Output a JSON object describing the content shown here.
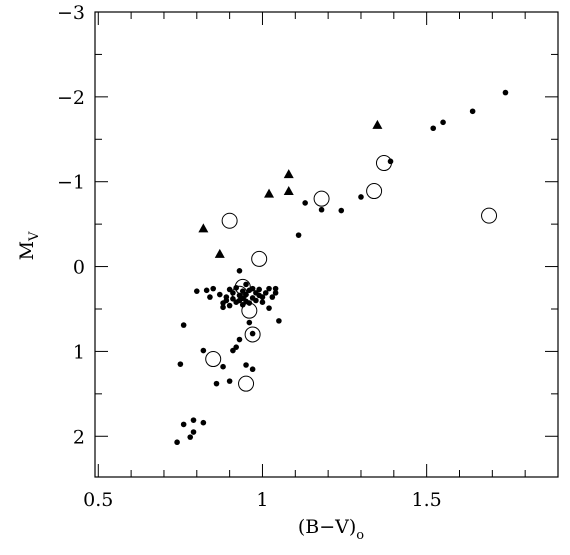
{
  "chart_data": {
    "type": "scatter",
    "xlabel": {
      "main": "(B−V)",
      "sub": "o"
    },
    "ylabel": {
      "main": "M",
      "sub": "V"
    },
    "xlim": [
      0.49,
      1.9
    ],
    "ylim": [
      2.48,
      -3.0
    ],
    "y_inverted": true,
    "grid": false,
    "x_ticks": [
      {
        "value": 0.5,
        "label": "0.5"
      },
      {
        "value": 1.0,
        "label": "1"
      },
      {
        "value": 1.5,
        "label": "1.5"
      }
    ],
    "y_ticks": [
      {
        "value": -3,
        "label": "−3"
      },
      {
        "value": -2,
        "label": "−2"
      },
      {
        "value": -1,
        "label": "−1"
      },
      {
        "value": 0,
        "label": "0"
      },
      {
        "value": 1,
        "label": "1"
      },
      {
        "value": 2,
        "label": "2"
      }
    ],
    "series": [
      {
        "marker": "filled-circle",
        "color": "#000000",
        "points": [
          [
            0.74,
            2.07
          ],
          [
            0.76,
            1.86
          ],
          [
            0.78,
            2.01
          ],
          [
            0.79,
            1.81
          ],
          [
            0.79,
            1.95
          ],
          [
            0.82,
            1.84
          ],
          [
            0.75,
            1.15
          ],
          [
            0.76,
            0.69
          ],
          [
            0.8,
            0.29
          ],
          [
            0.82,
            0.99
          ],
          [
            0.83,
            0.28
          ],
          [
            0.84,
            0.36
          ],
          [
            0.85,
            0.26
          ],
          [
            0.86,
            1.38
          ],
          [
            0.87,
            0.33
          ],
          [
            0.88,
            1.18
          ],
          [
            0.88,
            0.43
          ],
          [
            0.88,
            0.48
          ],
          [
            0.89,
            0.36
          ],
          [
            0.89,
            0.4
          ],
          [
            0.9,
            0.46
          ],
          [
            0.9,
            0.27
          ],
          [
            0.9,
            1.35
          ],
          [
            0.91,
            0.38
          ],
          [
            0.91,
            0.31
          ],
          [
            0.91,
            0.99
          ],
          [
            0.92,
            0.42
          ],
          [
            0.92,
            0.25
          ],
          [
            0.92,
            0.95
          ],
          [
            0.93,
            0.34
          ],
          [
            0.93,
            0.4
          ],
          [
            0.93,
            0.05
          ],
          [
            0.93,
            0.86
          ],
          [
            0.94,
            0.29
          ],
          [
            0.94,
            0.45
          ],
          [
            0.94,
            0.37
          ],
          [
            0.95,
            0.33
          ],
          [
            0.95,
            0.21
          ],
          [
            0.95,
            0.41
          ],
          [
            0.95,
            1.16
          ],
          [
            0.96,
            0.28
          ],
          [
            0.96,
            0.66
          ],
          [
            0.96,
            0.43
          ],
          [
            0.97,
            0.37
          ],
          [
            0.97,
            0.79
          ],
          [
            0.97,
            0.26
          ],
          [
            0.97,
            1.21
          ],
          [
            0.98,
            0.31
          ],
          [
            0.98,
            0.4
          ],
          [
            0.99,
            0.34
          ],
          [
            0.99,
            0.27
          ],
          [
            1.0,
            0.36
          ],
          [
            1.0,
            0.42
          ],
          [
            1.01,
            0.31
          ],
          [
            1.02,
            0.26
          ],
          [
            1.02,
            0.49
          ],
          [
            1.03,
            0.36
          ],
          [
            1.04,
            0.26
          ],
          [
            1.04,
            0.31
          ],
          [
            1.05,
            0.64
          ],
          [
            1.11,
            -0.37
          ],
          [
            1.13,
            -0.75
          ],
          [
            1.18,
            -0.67
          ],
          [
            1.24,
            -0.66
          ],
          [
            1.3,
            -0.82
          ],
          [
            1.39,
            -1.24
          ],
          [
            1.52,
            -1.63
          ],
          [
            1.55,
            -1.7
          ],
          [
            1.64,
            -1.83
          ],
          [
            1.74,
            -2.05
          ]
        ]
      },
      {
        "marker": "open-circle",
        "color": "#000000",
        "points": [
          [
            0.9,
            -0.54
          ],
          [
            0.99,
            -0.09
          ],
          [
            0.94,
            0.24
          ],
          [
            0.93,
            0.32
          ],
          [
            0.96,
            0.52
          ],
          [
            0.97,
            0.8
          ],
          [
            0.85,
            1.09
          ],
          [
            0.95,
            1.38
          ],
          [
            1.18,
            -0.8
          ],
          [
            1.34,
            -0.89
          ],
          [
            1.37,
            -1.22
          ],
          [
            1.69,
            -0.6
          ]
        ]
      },
      {
        "marker": "filled-triangle",
        "color": "#000000",
        "points": [
          [
            0.82,
            -0.45
          ],
          [
            0.87,
            -0.15
          ],
          [
            1.02,
            -0.86
          ],
          [
            1.08,
            -0.89
          ],
          [
            1.08,
            -1.09
          ],
          [
            1.35,
            -1.67
          ]
        ]
      }
    ]
  }
}
